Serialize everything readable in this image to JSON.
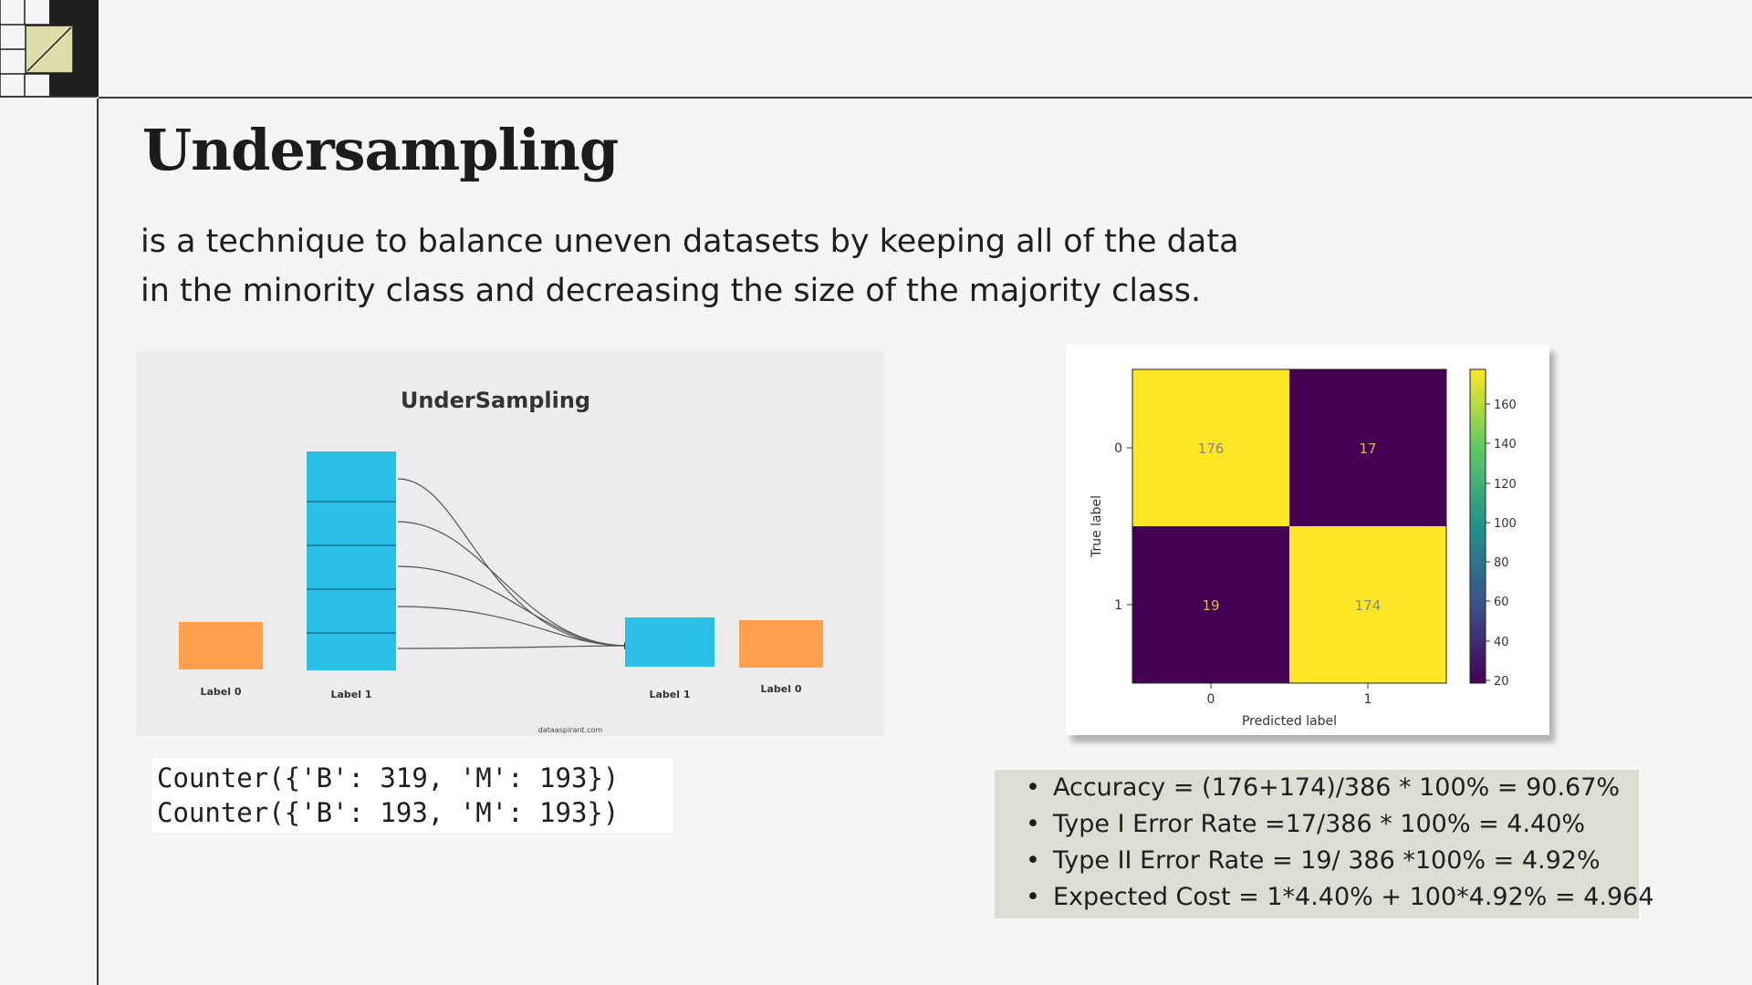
{
  "slide": {
    "title": "Undersampling",
    "description": [
      "is a technique to balance uneven datasets by keeping all of the data",
      "in the minority class and decreasing the size of the majority class."
    ]
  },
  "illustration": {
    "title": "UnderSampling",
    "left_small_label": "Label 0",
    "tall_label": "Label 1",
    "result_blue_label": "Label 1",
    "result_orange_label": "Label 0",
    "source": "dataaspirant.com",
    "colors": {
      "blue": "#2ac0e6",
      "orange": "#ffa04d"
    }
  },
  "counters": [
    "Counter({'B': 319, 'M': 193})",
    "Counter({'B': 193, 'M': 193})"
  ],
  "confusion_matrix": {
    "cells": [
      {
        "row": 0,
        "col": 0,
        "value": "176"
      },
      {
        "row": 0,
        "col": 1,
        "value": "17"
      },
      {
        "row": 1,
        "col": 0,
        "value": "19"
      },
      {
        "row": 1,
        "col": 1,
        "value": "174"
      }
    ],
    "row_ticks": [
      "0",
      "1"
    ],
    "col_ticks": [
      "0",
      "1"
    ],
    "ylabel": "True label",
    "xlabel": "Predicted label",
    "colorbar_ticks": [
      "160",
      "140",
      "120",
      "100",
      "80",
      "60",
      "40",
      "20"
    ],
    "colors": {
      "high": "#fde725",
      "low": "#440154"
    }
  },
  "metrics": [
    "Accuracy = (176+174)/386 * 100% = 90.67%",
    "Type I Error Rate =17/386 * 100% = 4.40%",
    "Type II Error Rate = 19/ 386 *100% = 4.92%",
    "Expected Cost = 1*4.40% + 100*4.92% = 4.964"
  ]
}
